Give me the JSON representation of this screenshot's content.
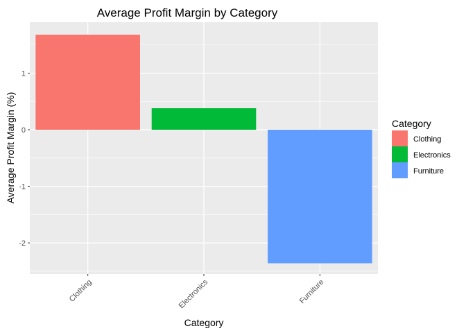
{
  "chart_data": {
    "type": "bar",
    "title": "Average Profit Margin by Category",
    "xlabel": "Category",
    "ylabel": "Average Profit Margin (%)",
    "categories": [
      "Clothing",
      "Electronics",
      "Furniture"
    ],
    "values": [
      1.68,
      0.38,
      -2.36
    ],
    "colors": [
      "#F8766D",
      "#00BA38",
      "#619CFF"
    ],
    "ylim": [
      -2.55,
      1.9
    ],
    "yticks": [
      -2,
      -1,
      0,
      1
    ],
    "ytick_labels": [
      "-2",
      "-1",
      "0",
      "1"
    ],
    "grid": true,
    "panel_background": "#EBEBEB",
    "legend": {
      "title": "Category",
      "position": "right",
      "entries": [
        "Clothing",
        "Electronics",
        "Furniture"
      ]
    }
  }
}
